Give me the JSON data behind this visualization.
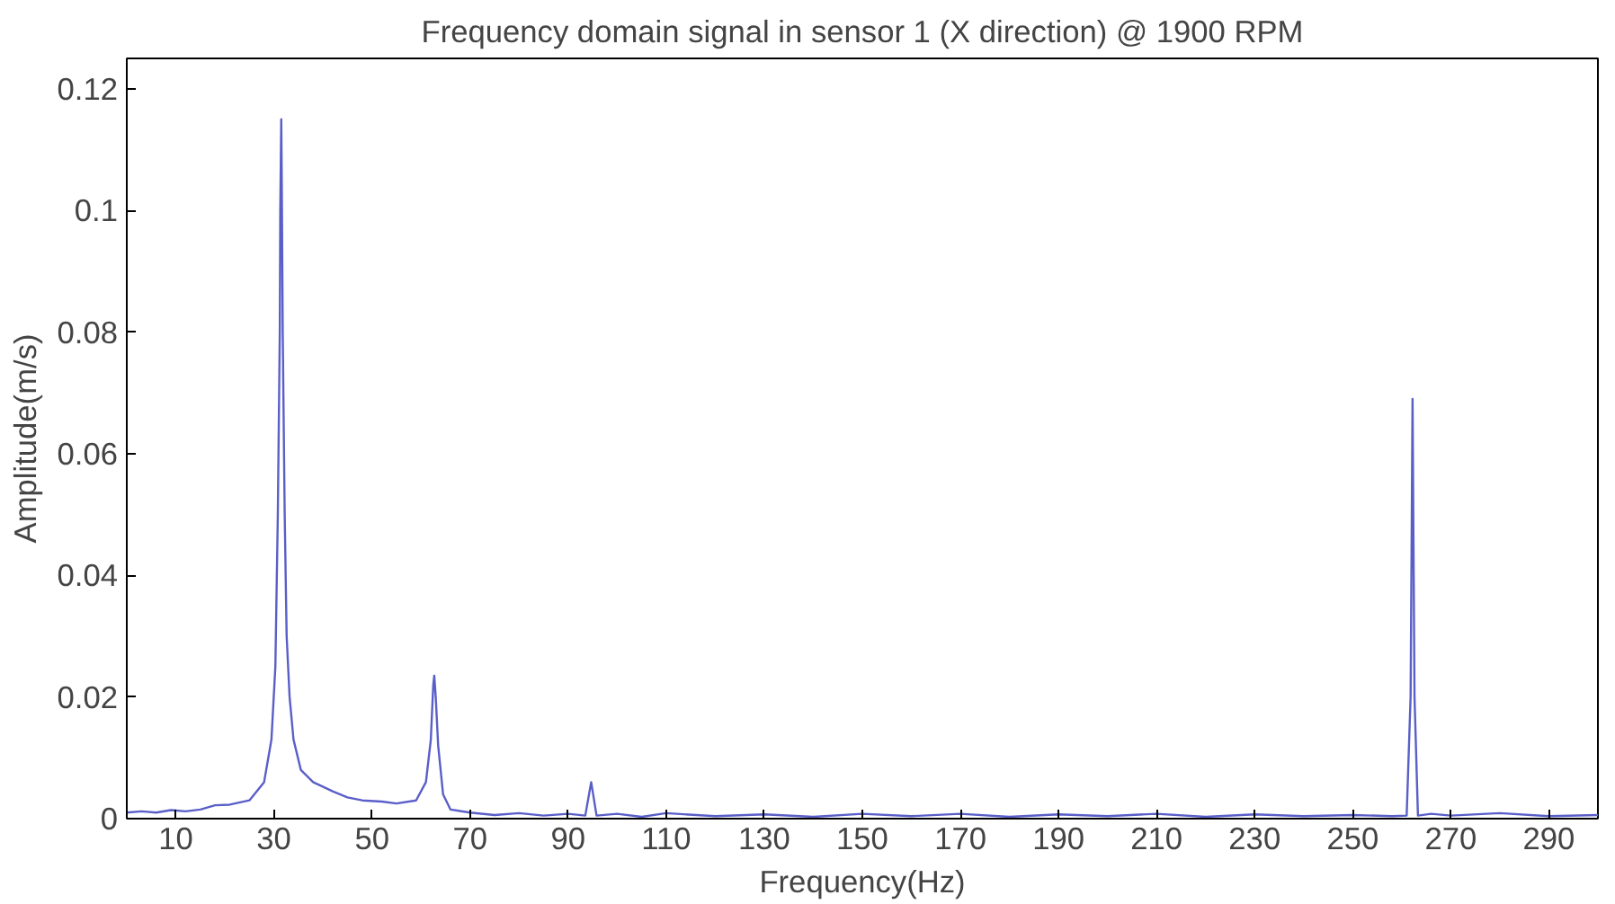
{
  "chart_data": {
    "type": "line",
    "title": "Frequency domain signal in sensor 1 (X direction) @ 1900 RPM",
    "xlabel": "Frequency(Hz)",
    "ylabel": "Amplitude(m/s)",
    "xlim": [
      0,
      300
    ],
    "ylim": [
      0,
      0.125
    ],
    "xticks": [
      10,
      30,
      50,
      70,
      90,
      110,
      130,
      150,
      170,
      190,
      210,
      230,
      250,
      270,
      290
    ],
    "yticks": [
      0,
      0.02,
      0.04,
      0.06,
      0.08,
      0.1,
      0.12
    ],
    "grid": false,
    "marker": "none",
    "line_style": "solid",
    "series": [
      {
        "color": "#5a5fc8",
        "x": [
          0,
          3,
          6,
          9,
          12,
          15,
          18,
          21,
          25,
          28,
          29.5,
          30.3,
          30.8,
          31.2,
          31.3,
          31.5,
          31.6,
          31.8,
          32.2,
          32.6,
          33.2,
          34,
          35.5,
          38,
          42,
          45,
          48,
          52,
          55,
          59,
          61,
          62,
          62.5,
          62.7,
          63,
          63.5,
          64.5,
          66,
          70,
          75,
          80,
          85,
          90,
          93.5,
          94.7,
          95.8,
          100,
          105,
          110,
          120,
          130,
          140,
          150,
          160,
          170,
          180,
          190,
          200,
          210,
          220,
          230,
          240,
          250,
          258,
          261,
          261.8,
          262,
          262.2,
          262.4,
          262.6,
          263.3,
          266,
          270,
          280,
          290,
          300
        ],
        "values": [
          0.001,
          0.0012,
          0.001,
          0.0014,
          0.0012,
          0.0015,
          0.0022,
          0.0023,
          0.003,
          0.006,
          0.013,
          0.025,
          0.05,
          0.08,
          0.1,
          0.115,
          0.105,
          0.08,
          0.05,
          0.03,
          0.02,
          0.013,
          0.008,
          0.006,
          0.0045,
          0.0035,
          0.003,
          0.0028,
          0.0025,
          0.003,
          0.006,
          0.013,
          0.022,
          0.0235,
          0.02,
          0.012,
          0.004,
          0.0015,
          0.001,
          0.0006,
          0.0009,
          0.0005,
          0.0008,
          0.0005,
          0.006,
          0.0005,
          0.0008,
          0.0003,
          0.0009,
          0.0004,
          0.0007,
          0.0003,
          0.0008,
          0.0004,
          0.0008,
          0.0003,
          0.0007,
          0.0004,
          0.0008,
          0.0003,
          0.0007,
          0.0004,
          0.0006,
          0.0004,
          0.0005,
          0.02,
          0.044,
          0.069,
          0.044,
          0.02,
          0.0005,
          0.0008,
          0.0005,
          0.0009,
          0.0004,
          0.0006
        ]
      }
    ]
  }
}
